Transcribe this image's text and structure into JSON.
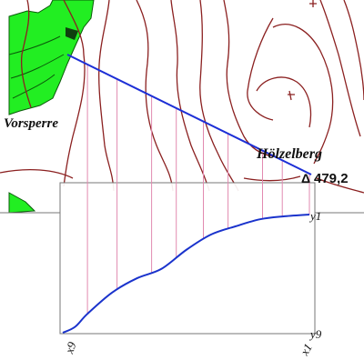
{
  "map": {
    "place_left": "Vorsperre",
    "place_right": "Hölzelberg",
    "summit_marker": "Δ",
    "summit_elevation": "479,2"
  },
  "profile": {
    "x_start_label": "x9",
    "x_end_label": "x1",
    "y_top_label": "y1",
    "y_bottom_label": "y9",
    "curve_points": [
      [
        0.0,
        0.0
      ],
      [
        0.05,
        0.05
      ],
      [
        0.1,
        0.16
      ],
      [
        0.2,
        0.34
      ],
      [
        0.3,
        0.46
      ],
      [
        0.4,
        0.54
      ],
      [
        0.5,
        0.7
      ],
      [
        0.6,
        0.83
      ],
      [
        0.7,
        0.9
      ],
      [
        0.8,
        0.96
      ],
      [
        0.9,
        0.985
      ],
      [
        1.0,
        1.0
      ]
    ],
    "ticks": [
      0.1,
      0.22,
      0.36,
      0.46,
      0.57,
      0.67,
      0.81,
      0.89,
      1.0
    ]
  },
  "colors": {
    "contour": "#8b2020",
    "section_line": "#1d2fd6",
    "profile_curve": "#1a33cc",
    "ticks": "#e28ab0",
    "forest": "#22ee22",
    "frame": "#777777"
  }
}
